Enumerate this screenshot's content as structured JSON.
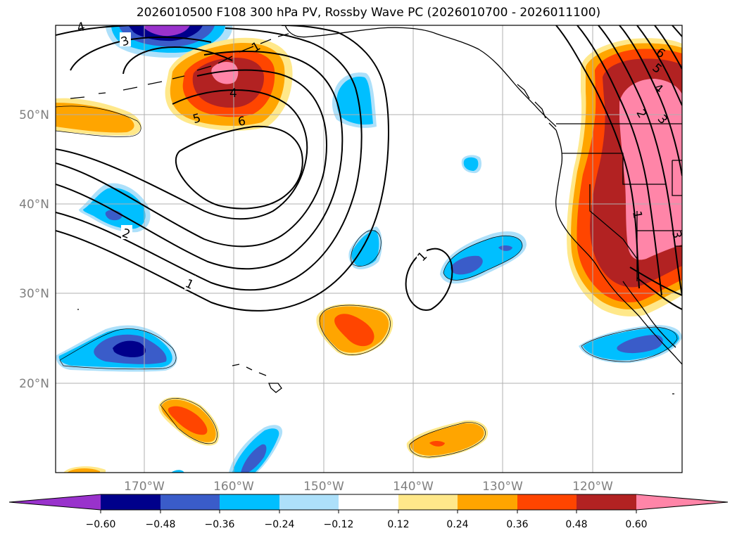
{
  "title": "2026010500 F108 300 hPa PV, Rossby Wave PC (2026010700 - 2026011100)",
  "colors": {
    "lev_m060": "#9932cc",
    "lev_m048": "#00008b",
    "lev_m036": "#3a5cc9",
    "lev_m024": "#00bfff",
    "lev_m012": "#ade0fa",
    "lev_0": "#ffffff",
    "lev_p012": "#ffe88a",
    "lev_p024": "#ffa500",
    "lev_p036": "#ff4500",
    "lev_p048": "#b22222",
    "lev_p060": "#ff85a8",
    "contour": "#000000",
    "grid": "#b0b0b0",
    "axis_label": "#7f7f7f"
  },
  "lon_labels": [
    "170°W",
    "160°W",
    "150°W",
    "140°W",
    "130°W",
    "120°W"
  ],
  "lat_labels": [
    "50°N",
    "40°N",
    "30°N",
    "20°N"
  ],
  "colorbar": {
    "ticks": [
      "−0.60",
      "−0.48",
      "−0.36",
      "−0.24",
      "−0.12",
      "0.12",
      "0.24",
      "0.36",
      "0.48",
      "0.60"
    ]
  },
  "contour_labels": {
    "low_1": "1",
    "low_2": "2",
    "low_3": "3",
    "low_4_top": "4",
    "low_4": "4",
    "low_5": "5",
    "low_6": "6",
    "small_1": "1",
    "east_6": "6",
    "east_5": "5",
    "east_4": "4",
    "east_3": "3",
    "east_2": "2",
    "east_1": "1",
    "east_top_1": "1",
    "east_3b": "3"
  }
}
